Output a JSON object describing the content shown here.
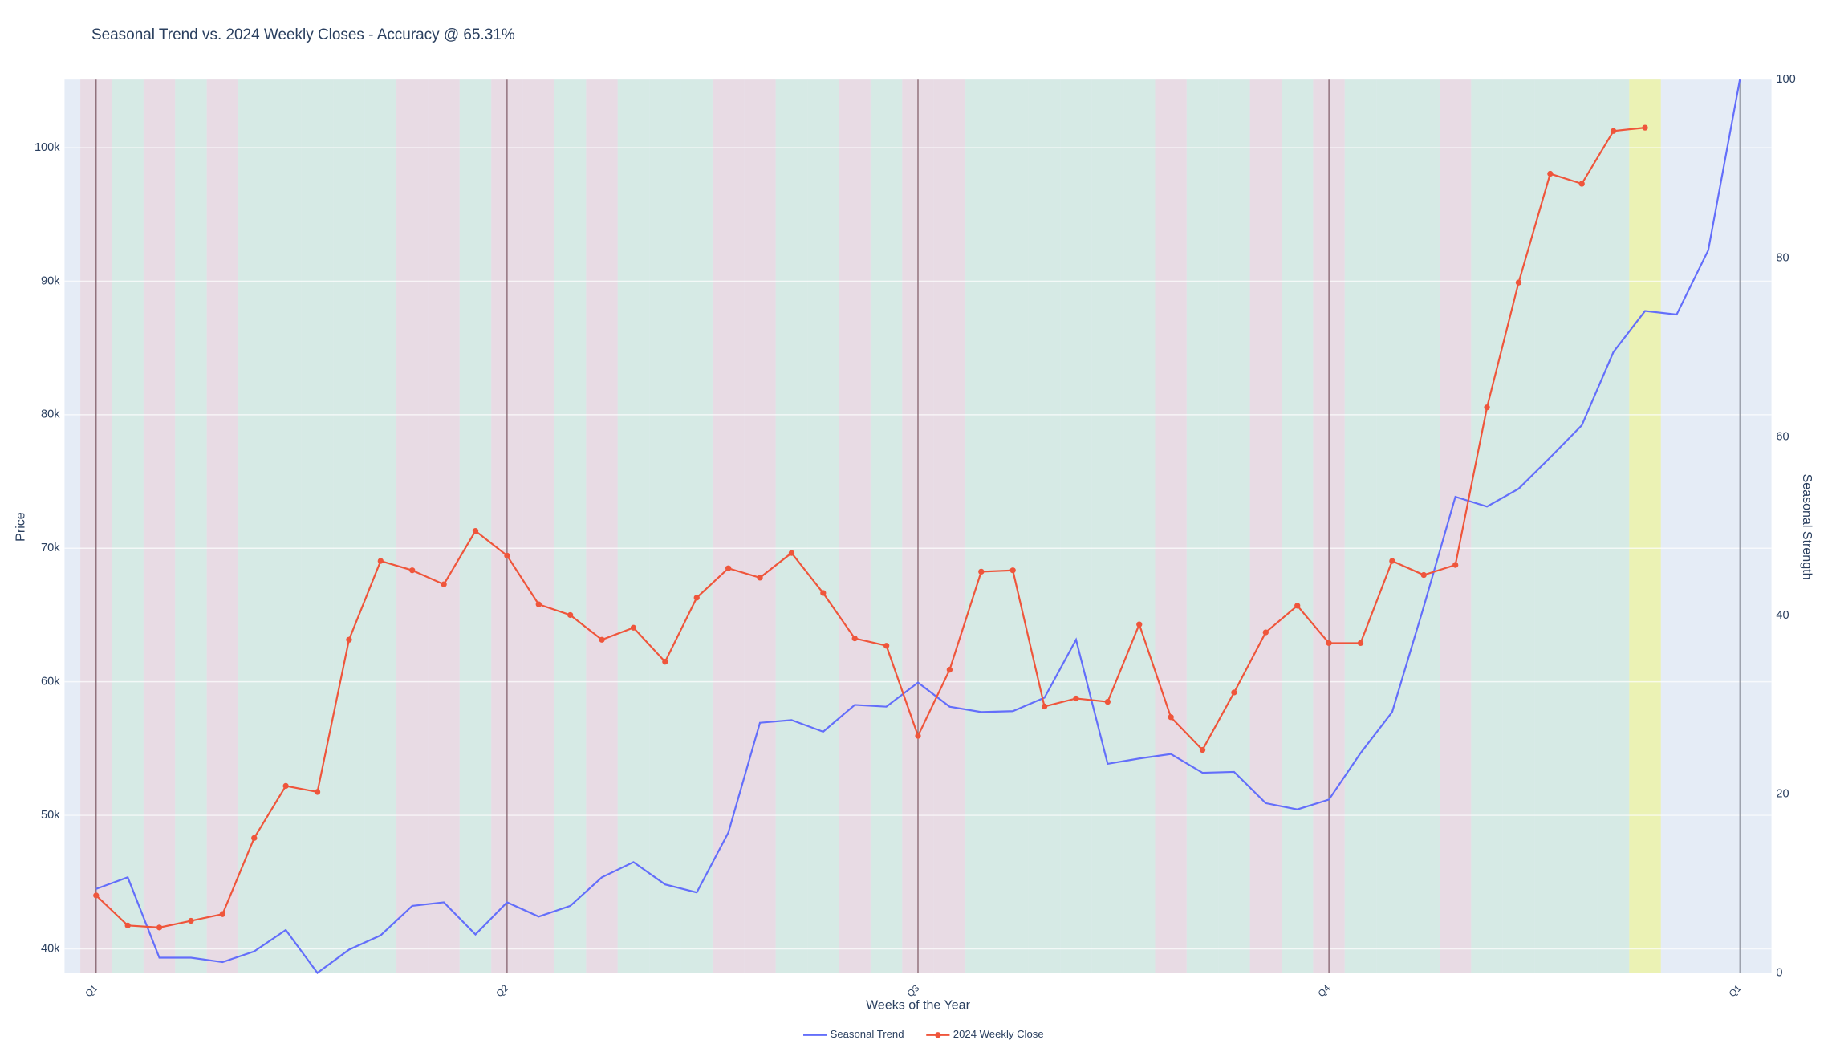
{
  "chart_data": {
    "type": "line",
    "title": "Seasonal Trend vs. 2024 Weekly Closes - Accuracy @ 65.31%",
    "x_label": "Weeks of the Year",
    "y_label": "Price",
    "y2_label": "Seasonal Strength",
    "x": [
      0,
      1,
      2,
      3,
      4,
      5,
      6,
      7,
      8,
      9,
      10,
      11,
      12,
      13,
      14,
      15,
      16,
      17,
      18,
      19,
      20,
      21,
      22,
      23,
      24,
      25,
      26,
      27,
      28,
      29,
      30,
      31,
      32,
      33,
      34,
      35,
      36,
      37,
      38,
      39,
      40,
      41,
      42,
      43,
      44,
      45,
      46,
      47,
      48,
      49,
      50,
      51,
      52
    ],
    "xlim": [
      -1,
      53
    ],
    "xticks": [
      {
        "value": 0,
        "label": "Q1"
      },
      {
        "value": 13,
        "label": "Q2"
      },
      {
        "value": 26,
        "label": "Q3"
      },
      {
        "value": 39,
        "label": "Q4"
      },
      {
        "value": 52,
        "label": "Q1"
      }
    ],
    "ylim": [
      38200,
      105100
    ],
    "yticks": [
      {
        "value": 40000,
        "label": "40k"
      },
      {
        "value": 50000,
        "label": "50k"
      },
      {
        "value": 60000,
        "label": "60k"
      },
      {
        "value": 70000,
        "label": "70k"
      },
      {
        "value": 80000,
        "label": "80k"
      },
      {
        "value": 90000,
        "label": "90k"
      },
      {
        "value": 100000,
        "label": "100k"
      }
    ],
    "y2lim": [
      0,
      100
    ],
    "y2ticks": [
      0,
      20,
      40,
      60,
      80,
      100
    ],
    "grid": true,
    "legend": "bottom",
    "band_colors": [
      "#e8dbe4",
      "#d6eae5",
      "#e8dbe4",
      "#d6eae5",
      "#e8dbe4",
      "#d6eae5",
      "#d6eae5",
      "#d6eae5",
      "#d6eae5",
      "#d6eae5",
      "#e8dbe4",
      "#e8dbe4",
      "#d6eae5",
      "#e8dbe4",
      "#e8dbe4",
      "#d6eae5",
      "#e8dbe4",
      "#d6eae5",
      "#d6eae5",
      "#d6eae5",
      "#e8dbe4",
      "#e8dbe4",
      "#d6eae5",
      "#d6eae5",
      "#e8dbe4",
      "#d6eae5",
      "#e8dbe4",
      "#e8dbe4",
      "#d6eae5",
      "#d6eae5",
      "#d6eae5",
      "#d6eae5",
      "#d6eae5",
      "#d6eae5",
      "#e8dbe4",
      "#d6eae5",
      "#d6eae5",
      "#e8dbe4",
      "#d6eae5",
      "#e8dbe4",
      "#d6eae5",
      "#d6eae5",
      "#d6eae5",
      "#e8dbe4",
      "#d6eae5",
      "#d6eae5",
      "#d6eae5",
      "#d6eae5",
      "#d6eae5",
      "#ebf2b4"
    ],
    "series": [
      {
        "name": "Seasonal Trend",
        "color": "#636efa",
        "axis": "y2",
        "markers": false,
        "values": [
          9.4,
          10.7,
          1.7,
          1.7,
          1.2,
          2.4,
          4.8,
          0,
          2.6,
          4.2,
          7.5,
          7.9,
          4.3,
          7.9,
          6.3,
          7.5,
          10.7,
          12.4,
          9.9,
          9.0,
          15.7,
          28.0,
          28.3,
          27.0,
          30.0,
          29.8,
          32.5,
          29.8,
          29.2,
          29.3,
          30.8,
          37.3,
          23.4,
          24.0,
          24.5,
          22.4,
          22.5,
          19.0,
          18.3,
          19.4,
          24.6,
          29.2,
          41,
          53.3,
          52.2,
          54.2,
          57.7,
          61.3,
          69.5,
          74.1,
          73.7,
          80.9,
          100
        ]
      },
      {
        "name": "2024 Weekly Close",
        "color": "#ef553b",
        "markers": true,
        "values": [
          44000,
          41750,
          41600,
          42100,
          42600,
          48300,
          52200,
          51750,
          63150,
          69050,
          68350,
          67300,
          71300,
          69450,
          65800,
          65000,
          63150,
          64050,
          61500,
          66300,
          68500,
          67800,
          69650,
          66650,
          63250,
          62700,
          55950,
          60900,
          68250,
          68350,
          58150,
          58750,
          58500,
          64300,
          57350,
          54900,
          59200,
          63700,
          65700,
          62900,
          62900,
          69050,
          68000,
          68750,
          80550,
          89900,
          98050,
          97300,
          101250,
          101500,
          null,
          null,
          null
        ]
      }
    ]
  }
}
